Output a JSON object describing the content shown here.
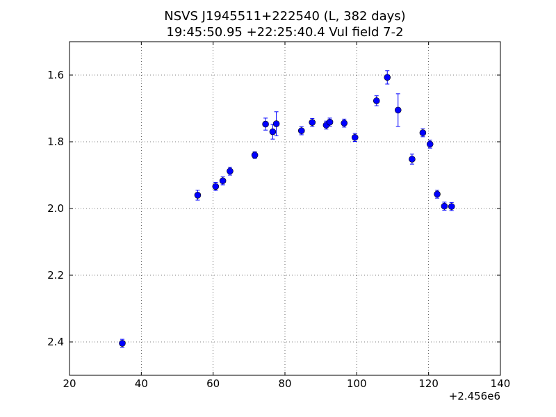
{
  "chart_data": {
    "type": "scatter",
    "title_line1": "NSVS J1945511+222540 (L, 382 days)",
    "title_line2": "19:45:50.95 +22:25:40.4 Vul field 7-2",
    "xlabel": "",
    "ylabel": "",
    "x_offset_label": "+2.456e6",
    "xlim": [
      20,
      140
    ],
    "ylim": [
      2.5,
      1.5
    ],
    "y_inverted": true,
    "grid": true,
    "marker_color": "#0000ff",
    "x_ticks": [
      20,
      40,
      60,
      80,
      100,
      120,
      140
    ],
    "y_ticks": [
      1.6,
      1.8,
      2.0,
      2.2,
      2.4
    ],
    "x_tick_labels": [
      "20",
      "40",
      "60",
      "80",
      "100",
      "120",
      "140"
    ],
    "y_tick_labels": [
      "1.6",
      "1.8",
      "2.0",
      "2.2",
      "2.4"
    ],
    "points": [
      {
        "x": 34.7,
        "y": 2.404,
        "err": 0.012
      },
      {
        "x": 55.7,
        "y": 1.96,
        "err": 0.015
      },
      {
        "x": 60.7,
        "y": 1.934,
        "err": 0.012
      },
      {
        "x": 62.7,
        "y": 1.917,
        "err": 0.012
      },
      {
        "x": 64.7,
        "y": 1.888,
        "err": 0.012
      },
      {
        "x": 71.6,
        "y": 1.84,
        "err": 0.01
      },
      {
        "x": 74.6,
        "y": 1.747,
        "err": 0.018
      },
      {
        "x": 76.6,
        "y": 1.77,
        "err": 0.022
      },
      {
        "x": 77.6,
        "y": 1.746,
        "err": 0.036
      },
      {
        "x": 84.6,
        "y": 1.767,
        "err": 0.012
      },
      {
        "x": 87.6,
        "y": 1.742,
        "err": 0.012
      },
      {
        "x": 91.5,
        "y": 1.75,
        "err": 0.012
      },
      {
        "x": 92.5,
        "y": 1.741,
        "err": 0.012
      },
      {
        "x": 96.5,
        "y": 1.744,
        "err": 0.012
      },
      {
        "x": 99.5,
        "y": 1.787,
        "err": 0.012
      },
      {
        "x": 105.5,
        "y": 1.677,
        "err": 0.015
      },
      {
        "x": 108.5,
        "y": 1.607,
        "err": 0.02
      },
      {
        "x": 111.5,
        "y": 1.705,
        "err": 0.049
      },
      {
        "x": 115.4,
        "y": 1.852,
        "err": 0.015
      },
      {
        "x": 118.4,
        "y": 1.773,
        "err": 0.012
      },
      {
        "x": 120.4,
        "y": 1.807,
        "err": 0.012
      },
      {
        "x": 122.4,
        "y": 1.957,
        "err": 0.012
      },
      {
        "x": 124.4,
        "y": 1.993,
        "err": 0.012
      },
      {
        "x": 126.4,
        "y": 1.994,
        "err": 0.012
      }
    ]
  }
}
